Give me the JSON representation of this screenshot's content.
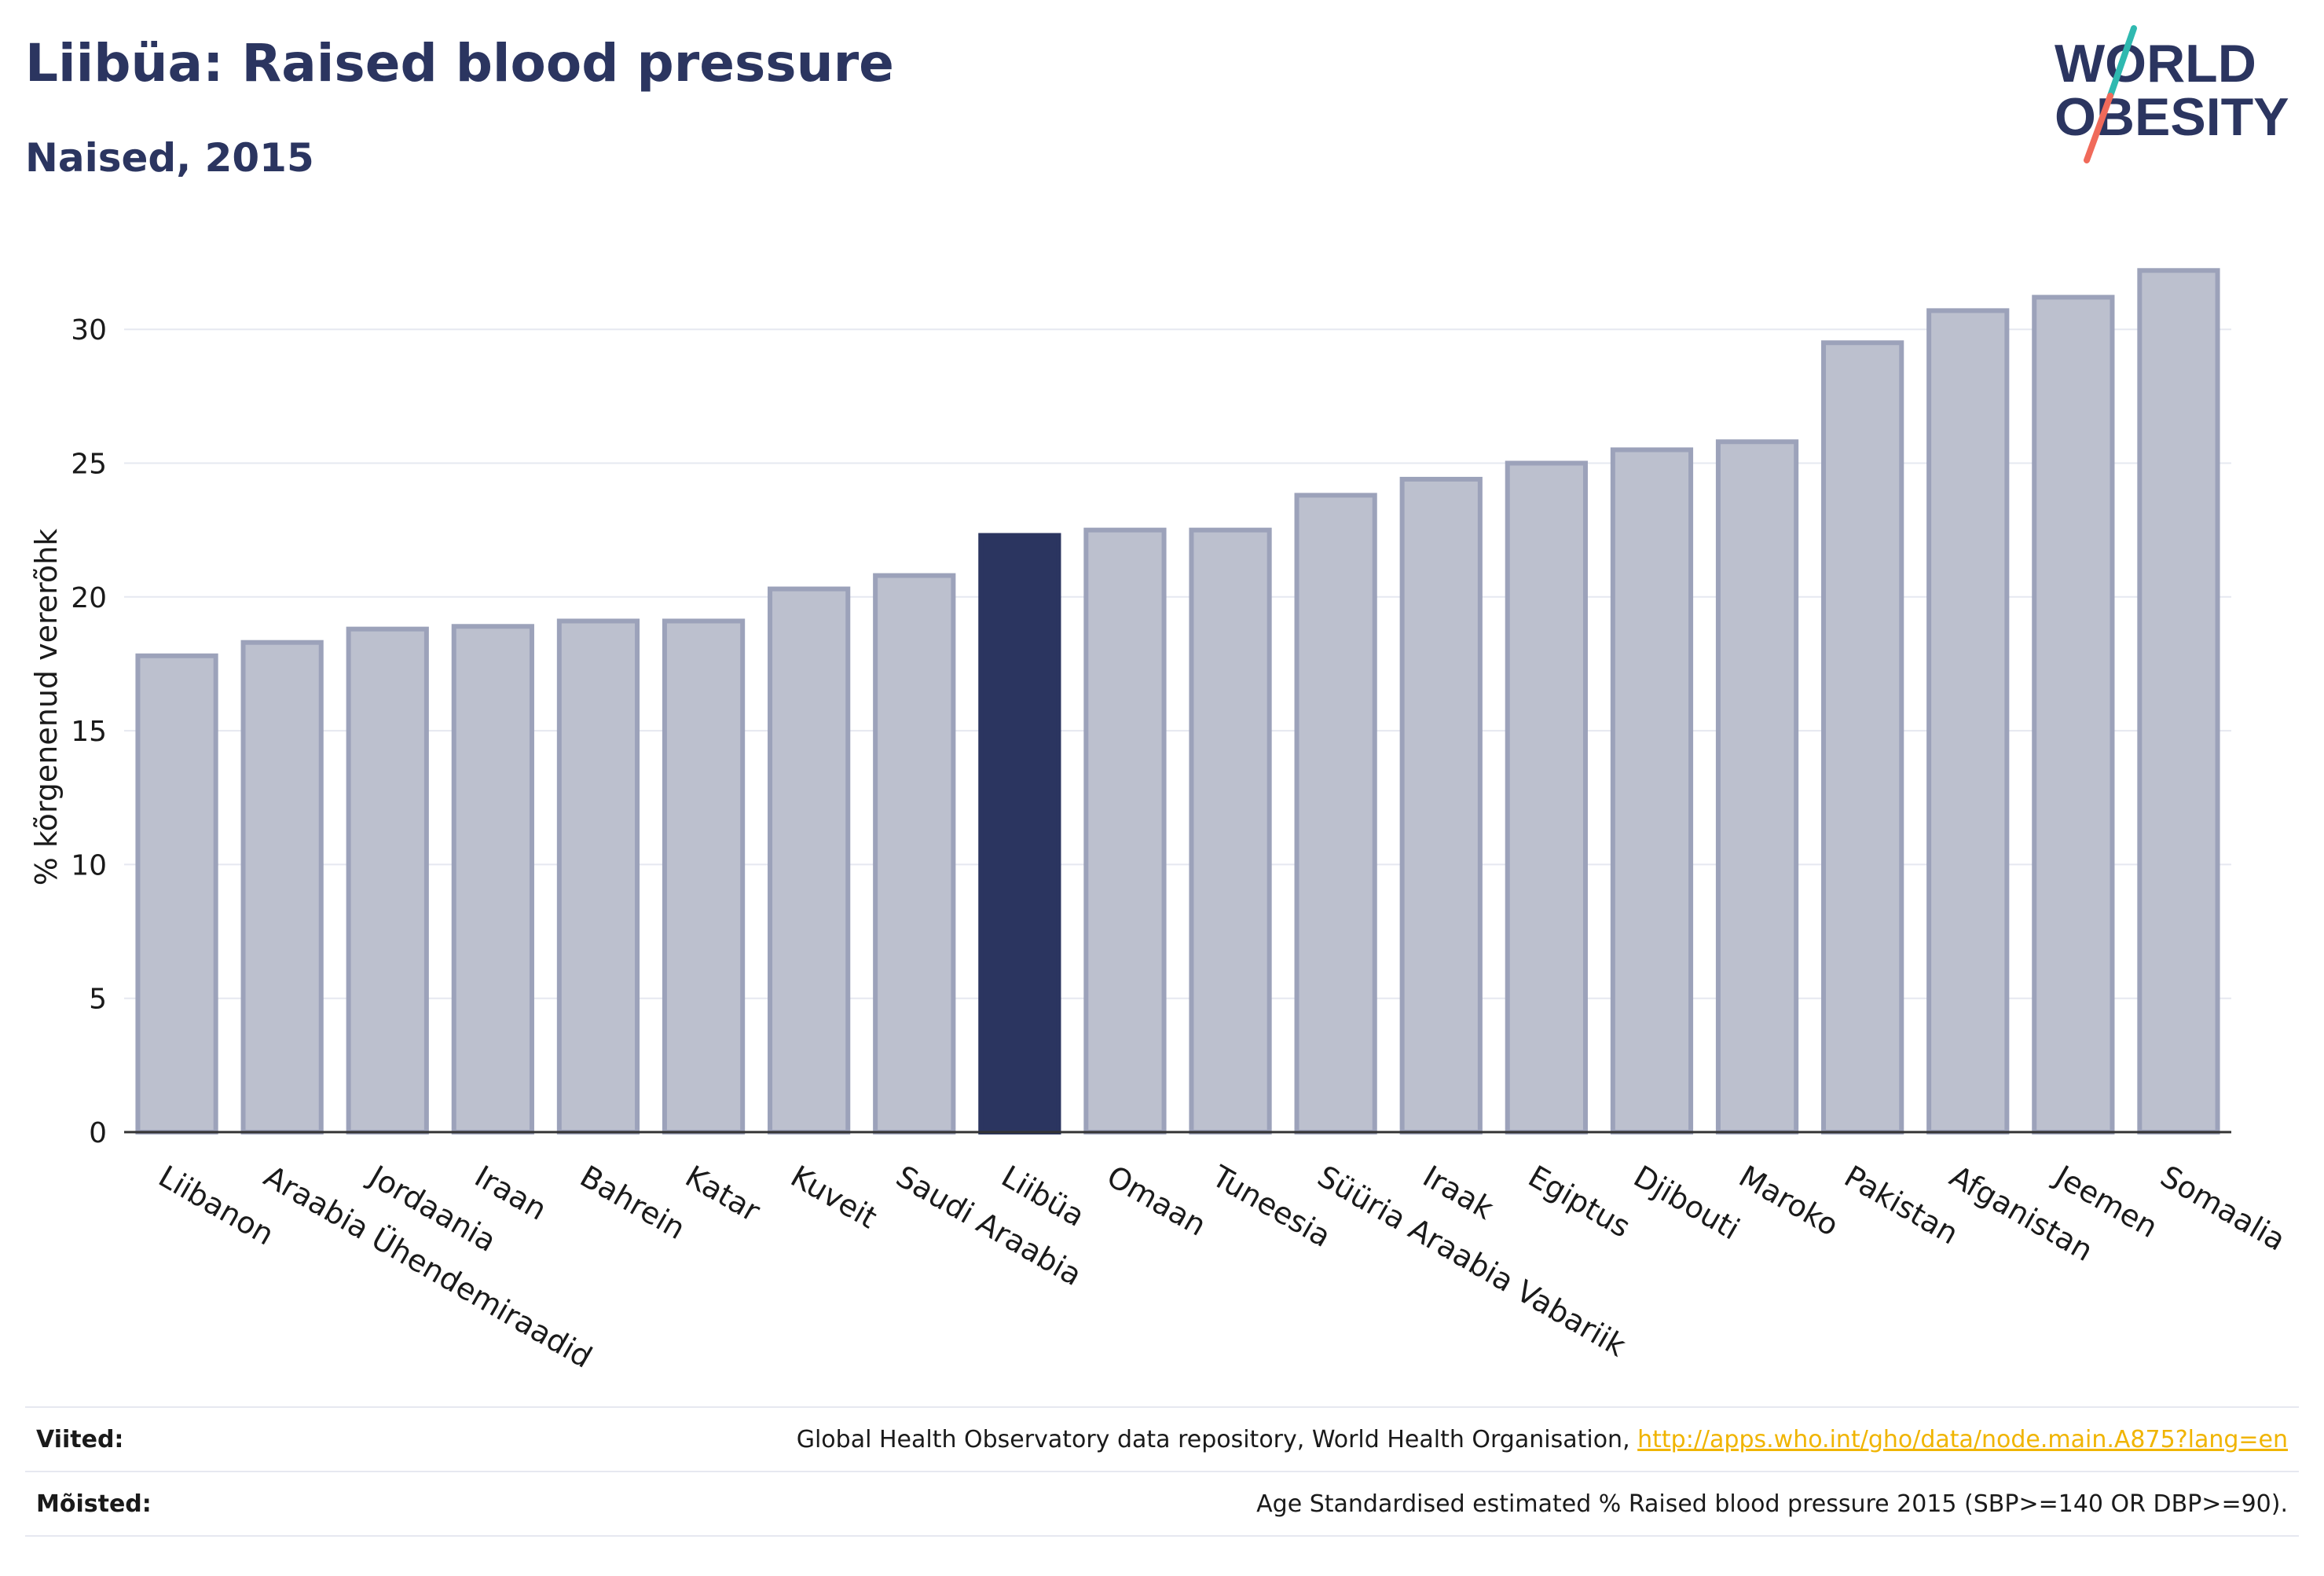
{
  "header": {
    "title": "Liibüa: Raised blood pressure",
    "subtitle": "Naised, 2015"
  },
  "logo": {
    "line1": "WORLD",
    "line2": "OBESITY",
    "slash_colors": [
      "#2fb9b0",
      "#f06a5a"
    ]
  },
  "chart_data": {
    "type": "bar",
    "ylabel": "% kõrgenenud vererõhk",
    "ylim": [
      0,
      33.5
    ],
    "yticks": [
      0,
      5,
      10,
      15,
      20,
      25,
      30
    ],
    "grid": true,
    "highlight": "Liibüa",
    "colors": {
      "bar": "#bcc0ce",
      "bar_border": "#9ca2ba",
      "highlight": "#2b3560",
      "grid": "#e6e8f0"
    },
    "categories": [
      "Liibanon",
      "Araabia Ühendemiraadid",
      "Jordaania",
      "Iraan",
      "Bahrein",
      "Katar",
      "Kuveit",
      "Saudi Araabia",
      "Liibüa",
      "Omaan",
      "Tuneesia",
      "Süüria Araabia Vabariik",
      "Iraak",
      "Egiptus",
      "Djibouti",
      "Maroko",
      "Pakistan",
      "Afganistan",
      "Jeemen",
      "Somaalia"
    ],
    "values": [
      17.8,
      18.3,
      18.8,
      18.9,
      19.1,
      19.1,
      20.3,
      20.8,
      22.3,
      22.5,
      22.5,
      23.8,
      24.4,
      25.0,
      25.5,
      25.8,
      29.5,
      30.7,
      31.2,
      32.2
    ]
  },
  "footer": {
    "sources_label": "Viited:",
    "sources_text": "Global Health Observatory data repository, World Health Organisation, ",
    "sources_link": "http://apps.who.int/gho/data/node.main.A875?lang=en",
    "definitions_label": "Mõisted:",
    "definitions_text": "Age Standardised estimated % Raised blood pressure 2015 (SBP>=140 OR DBP>=90)."
  }
}
